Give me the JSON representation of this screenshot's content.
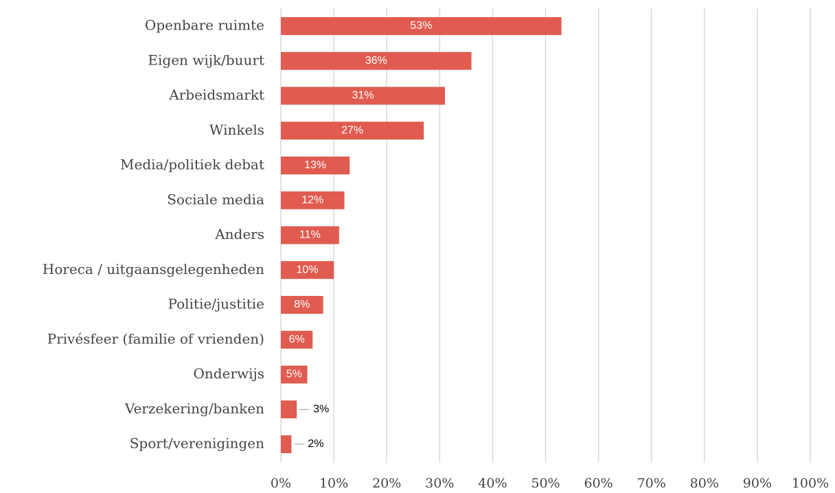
{
  "chart_data": {
    "type": "bar",
    "orientation": "horizontal",
    "categories": [
      "Openbare ruimte",
      "Eigen wijk/buurt",
      "Arbeidsmarkt",
      "Winkels",
      "Media/politiek debat",
      "Sociale media",
      "Anders",
      "Horeca / uitgaansgelegenheden",
      "Politie/justitie",
      "Privésfeer (familie of vrienden)",
      "Onderwijs",
      "Verzekering/banken",
      "Sport/verenigingen"
    ],
    "values": [
      53,
      36,
      31,
      27,
      13,
      12,
      11,
      10,
      8,
      6,
      5,
      3,
      2
    ],
    "value_labels": [
      "53%",
      "36%",
      "31%",
      "27%",
      "13%",
      "12%",
      "11%",
      "10%",
      "8%",
      "6%",
      "5%",
      "3%",
      "2%"
    ],
    "color": "#e05c50",
    "xlim": [
      0,
      100
    ],
    "xticks": [
      {
        "value": 0,
        "label": "0%"
      },
      {
        "value": 10,
        "label": "10%"
      },
      {
        "value": 20,
        "label": "20%"
      },
      {
        "value": 30,
        "label": "30%"
      },
      {
        "value": 40,
        "label": "40%"
      },
      {
        "value": 50,
        "label": "50%"
      },
      {
        "value": 60,
        "label": "60%"
      },
      {
        "value": 70,
        "label": "70%"
      },
      {
        "value": 80,
        "label": "80%"
      },
      {
        "value": 90,
        "label": "90%"
      },
      {
        "value": 100,
        "label": "100%"
      }
    ],
    "grid": true
  }
}
